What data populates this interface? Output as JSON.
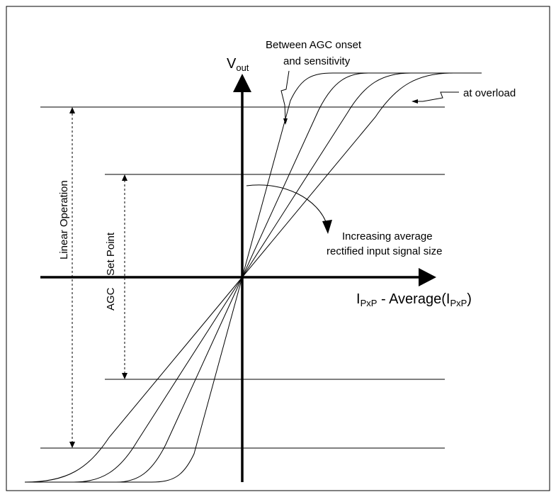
{
  "labels": {
    "y_axis_main": "V",
    "y_axis_sub": "out",
    "x_axis": {
      "part1": "I",
      "sub1": "PxP",
      "part2": " - Average(I",
      "sub2": "PxP",
      "part3": ")"
    },
    "annotation_top_line1": "Between AGC onset",
    "annotation_top_line2": "and sensitivity",
    "annotation_overload": "at overload",
    "annotation_increasing_line1": "Increasing average",
    "annotation_increasing_line2": "rectified input signal size",
    "linear_operation": "Linear Operation",
    "agc_set_point": "AGC    Set Point"
  },
  "colors": {
    "line": "#000000",
    "background": "#ffffff",
    "frame": "#000000"
  }
}
